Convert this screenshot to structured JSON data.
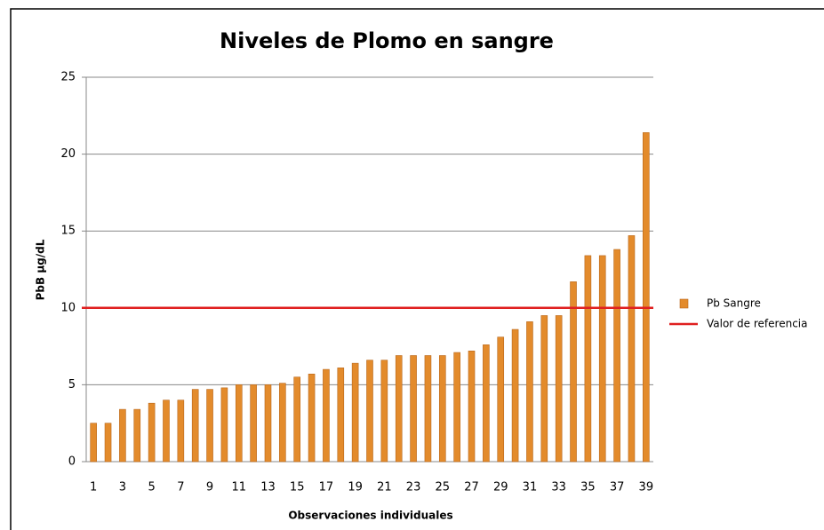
{
  "chart_data": {
    "type": "bar",
    "title": "Niveles de Plomo en sangre",
    "x_label": "Observaciones individuales",
    "y_label": "PbB µg/dL",
    "categories": [
      1,
      null,
      3,
      null,
      5,
      null,
      7,
      null,
      9,
      null,
      11,
      null,
      13,
      null,
      15,
      null,
      17,
      null,
      19,
      null,
      21,
      null,
      23,
      null,
      25,
      null,
      27,
      null,
      29,
      null,
      31,
      null,
      33,
      null,
      35,
      null,
      37,
      null,
      39
    ],
    "series": [
      {
        "name": "Pb Sangre",
        "color": "#e38b2c",
        "values": [
          2.5,
          2.5,
          3.4,
          3.4,
          3.8,
          4.0,
          4.0,
          4.7,
          4.7,
          4.8,
          5.0,
          5.0,
          5.0,
          5.1,
          5.5,
          5.7,
          6.0,
          6.1,
          6.4,
          6.6,
          6.6,
          6.9,
          6.9,
          6.9,
          6.9,
          7.1,
          7.2,
          7.6,
          8.1,
          8.6,
          9.1,
          9.5,
          9.5,
          11.7,
          13.4,
          13.4,
          13.8,
          14.7,
          21.4
        ]
      }
    ],
    "reference_line": {
      "name": "Valor de referencia",
      "value": 10,
      "color": "#e02020"
    },
    "ylim": [
      0,
      25
    ],
    "yticks": [
      0,
      5,
      10,
      15,
      20,
      25
    ],
    "grid": true,
    "legend": "right"
  }
}
